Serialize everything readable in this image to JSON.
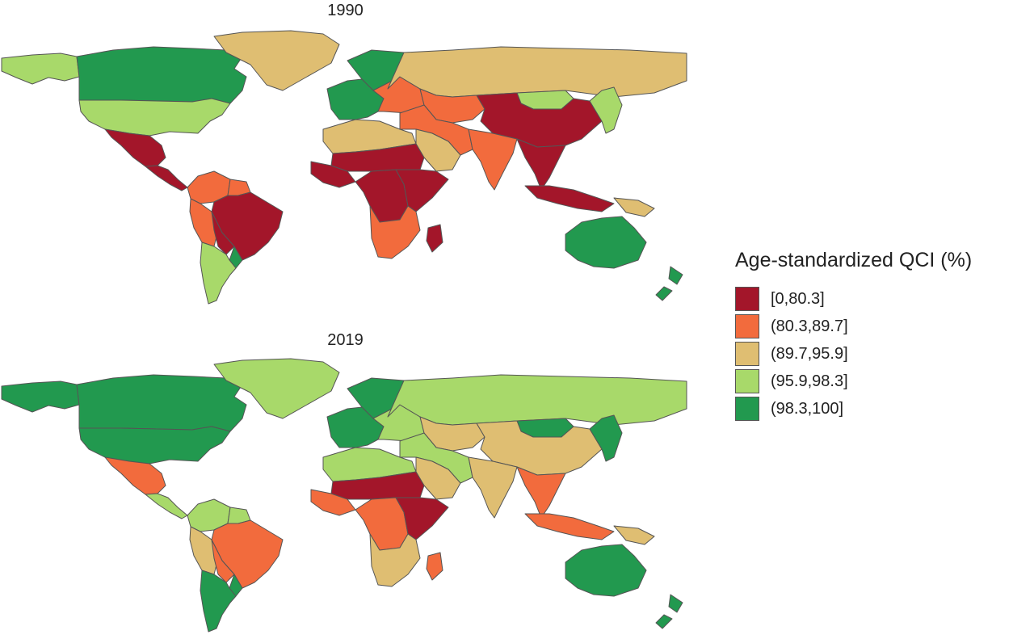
{
  "colors": {
    "c1": "#a3162a",
    "c2": "#f26b3d",
    "c3": "#dfbe72",
    "c4": "#a8d96a",
    "c5": "#22994f",
    "border": "#555555"
  },
  "panels": [
    {
      "year": "1990",
      "regions": {
        "canada": "c5",
        "usa": "c4",
        "alaska": "c4",
        "greenland": "c3",
        "mexico": "c1",
        "central_america": "c1",
        "colombia_venezuela": "c2",
        "guianas": "c2",
        "peru_ecuador": "c2",
        "brazil": "c1",
        "bolivia": "c1",
        "argentina_chile": "c4",
        "uruguay": "c5",
        "scandinavia": "c5",
        "western_europe": "c5",
        "eastern_europe": "c2",
        "russia": "c3",
        "central_asia": "c2",
        "mongolia": "c4",
        "china": "c1",
        "korea_japan": "c4",
        "middle_east": "c2",
        "arabia": "c3",
        "north_africa": "c3",
        "sahel": "c1",
        "west_africa": "c1",
        "central_africa": "c1",
        "east_africa": "c1",
        "southern_africa": "c2",
        "madagascar": "c1",
        "india": "c2",
        "southeast_asia": "c1",
        "indonesia": "c1",
        "papua": "c3",
        "australia": "c5",
        "new_zealand": "c5"
      }
    },
    {
      "year": "2019",
      "regions": {
        "canada": "c5",
        "usa": "c5",
        "alaska": "c5",
        "greenland": "c4",
        "mexico": "c2",
        "central_america": "c4",
        "colombia_venezuela": "c4",
        "guianas": "c4",
        "peru_ecuador": "c3",
        "brazil": "c2",
        "bolivia": "c2",
        "argentina_chile": "c5",
        "uruguay": "c5",
        "scandinavia": "c5",
        "western_europe": "c5",
        "eastern_europe": "c4",
        "russia": "c4",
        "central_asia": "c3",
        "mongolia": "c5",
        "china": "c3",
        "korea_japan": "c5",
        "middle_east": "c4",
        "arabia": "c3",
        "north_africa": "c4",
        "sahel": "c1",
        "west_africa": "c2",
        "central_africa": "c2",
        "east_africa": "c1",
        "southern_africa": "c3",
        "madagascar": "c2",
        "india": "c3",
        "southeast_asia": "c2",
        "indonesia": "c2",
        "papua": "c3",
        "australia": "c5",
        "new_zealand": "c5"
      }
    }
  ],
  "legend": {
    "title": "Age-standardized QCI (%)",
    "items": [
      {
        "label": "[0,80.3]",
        "color_key": "c1"
      },
      {
        "label": "(80.3,89.7]",
        "color_key": "c2"
      },
      {
        "label": "(89.7,95.9]",
        "color_key": "c3"
      },
      {
        "label": "(95.9,98.3]",
        "color_key": "c4"
      },
      {
        "label": "(98.3,100]",
        "color_key": "c5"
      }
    ]
  }
}
